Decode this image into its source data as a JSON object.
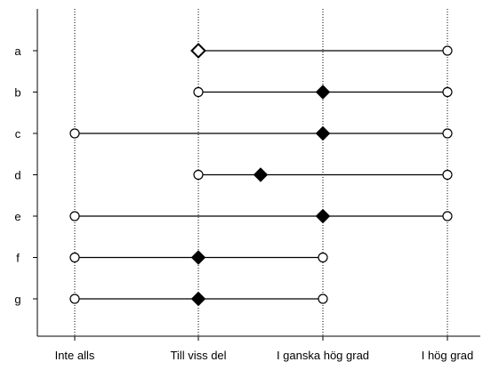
{
  "chart_data": {
    "type": "dot-range",
    "x_ticks": [
      "Inte alls",
      "Till viss del",
      "I ganska hög grad",
      "I hög grad"
    ],
    "x_range": [
      0,
      3
    ],
    "grid": "vertical dotted lines at each x tick",
    "rows": [
      {
        "label": "a",
        "min": 1,
        "max": 3,
        "marker": 1
      },
      {
        "label": "b",
        "min": 1,
        "max": 3,
        "marker": 2
      },
      {
        "label": "c",
        "min": 0,
        "max": 3,
        "marker": 2
      },
      {
        "label": "d",
        "min": 1,
        "max": 3,
        "marker": 1.5
      },
      {
        "label": "e",
        "min": 0,
        "max": 3,
        "marker": 2
      },
      {
        "label": "f",
        "min": 0,
        "max": 2,
        "marker": 1
      },
      {
        "label": "g",
        "min": 0,
        "max": 2,
        "marker": 1
      }
    ],
    "marker_style": {
      "range_end": "open circle",
      "central_value": "filled diamond (open diamond in row a)"
    },
    "colors": {
      "line": "#000000",
      "fill": "#000000",
      "background": "#ffffff"
    }
  }
}
